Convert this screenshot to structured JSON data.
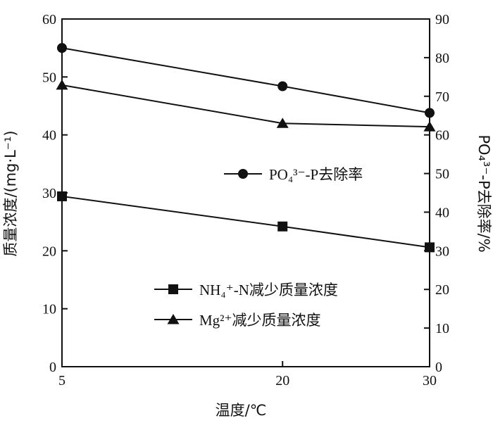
{
  "chart_data": {
    "type": "line",
    "x": [
      "5",
      "20",
      "30"
    ],
    "xlabel": "温度/℃",
    "ylabel": "质量浓度/(mg·L⁻¹)",
    "y2label": "PO₄³⁻-P去除率/%",
    "ylim": [
      0,
      60
    ],
    "y2lim": [
      0,
      90
    ],
    "yticks": [
      "0",
      "10",
      "20",
      "30",
      "40",
      "50",
      "60"
    ],
    "y2ticks": [
      "0",
      "10",
      "20",
      "30",
      "40",
      "50",
      "60",
      "70",
      "80",
      "90"
    ],
    "grid": false,
    "series": [
      {
        "name": "PO₄³⁻-P去除率",
        "axis": "right",
        "marker": "circle",
        "values": [
          82.5,
          72.6,
          65.7
        ]
      },
      {
        "name": "NH₄⁺-N减少质量浓度",
        "axis": "left",
        "marker": "square",
        "values": [
          29.4,
          24.2,
          20.6
        ]
      },
      {
        "name": "Mg²⁺减少质量浓度",
        "axis": "left",
        "marker": "triangle",
        "values": [
          48.6,
          42.0,
          41.4
        ]
      }
    ],
    "legend": [
      "PO₄³⁻-P去除率",
      "NH₄⁺-N减少质量浓度",
      "Mg²⁺减少质量浓度"
    ]
  }
}
